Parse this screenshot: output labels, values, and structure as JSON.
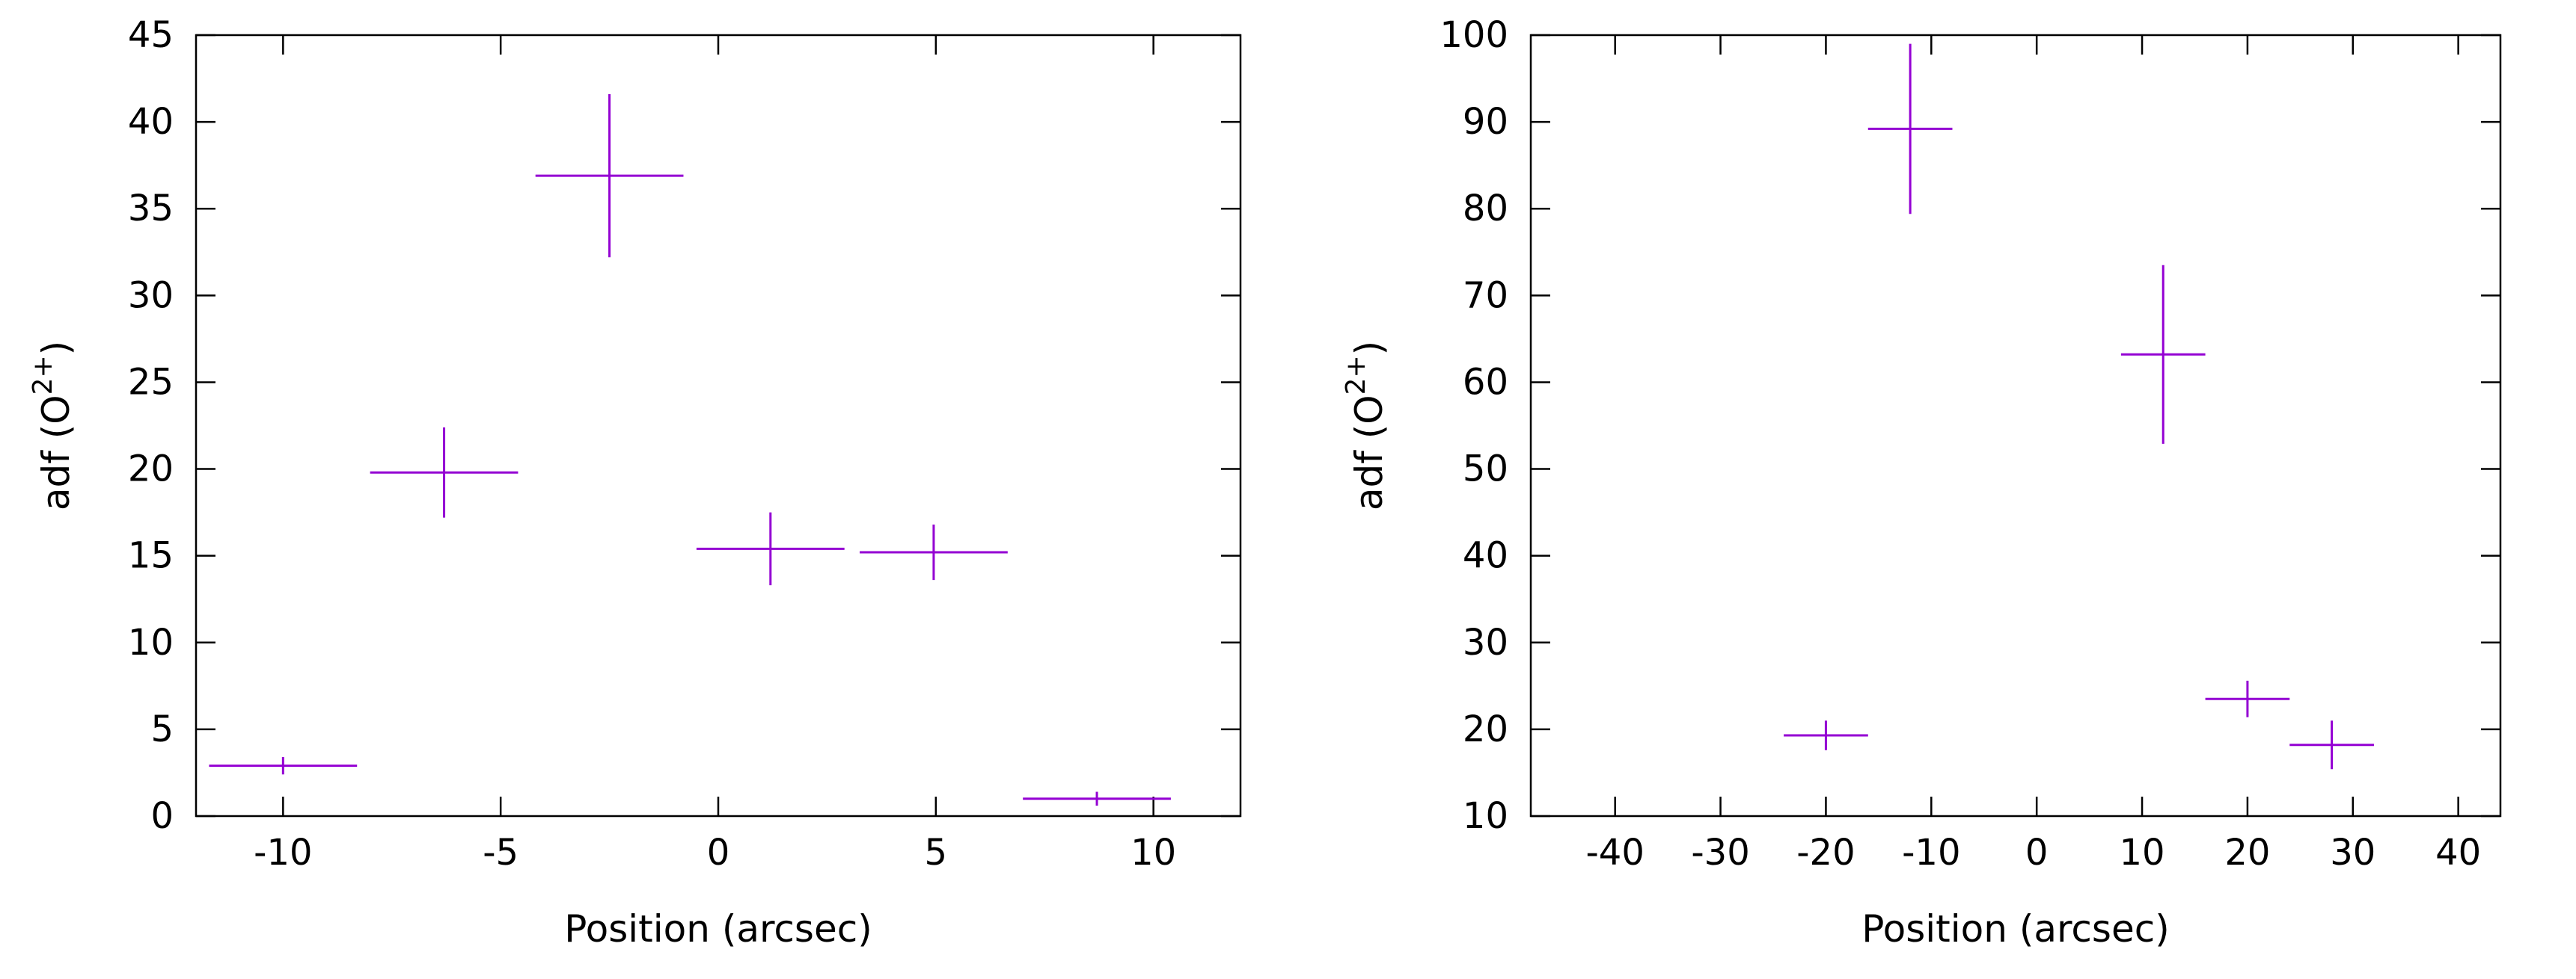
{
  "colors": {
    "series": "#9400d3",
    "axis": "#000000",
    "background": "#ffffff"
  },
  "chart_data": [
    {
      "type": "scatter",
      "title": "",
      "xlabel": "Position (arcsec)",
      "ylabel": {
        "base": "adf (O",
        "sup": "2+",
        "close": ")"
      },
      "xlim": [
        -12,
        12
      ],
      "ylim": [
        0,
        45
      ],
      "xticks": [
        -10,
        -5,
        0,
        5,
        10
      ],
      "yticks": [
        0,
        5,
        10,
        15,
        20,
        25,
        30,
        35,
        40,
        45
      ],
      "grid": false,
      "legend": "none",
      "points": [
        {
          "x": -10,
          "y": 2.9,
          "xerr": 1.7,
          "yerr": 0.5
        },
        {
          "x": -6.3,
          "y": 19.8,
          "xerr": 1.7,
          "yerr": 2.6
        },
        {
          "x": -2.5,
          "y": 36.9,
          "xerr": 1.7,
          "yerr": 4.7
        },
        {
          "x": 1.2,
          "y": 15.4,
          "xerr": 1.7,
          "yerr": 2.1
        },
        {
          "x": 4.95,
          "y": 15.2,
          "xerr": 1.7,
          "yerr": 1.6
        },
        {
          "x": 8.7,
          "y": 1.0,
          "xerr": 1.7,
          "yerr": 0.4
        }
      ]
    },
    {
      "type": "scatter",
      "title": "",
      "xlabel": "Position (arcsec)",
      "ylabel": {
        "base": "adf (O",
        "sup": "2+",
        "close": ")"
      },
      "xlim": [
        -48,
        44
      ],
      "ylim": [
        10,
        100
      ],
      "xticks": [
        -40,
        -30,
        -20,
        -10,
        0,
        10,
        20,
        30,
        40
      ],
      "yticks": [
        10,
        20,
        30,
        40,
        50,
        60,
        70,
        80,
        90,
        100
      ],
      "grid": false,
      "legend": "none",
      "points": [
        {
          "x": -20,
          "y": 19.3,
          "xerr": 4,
          "yerr": 1.7
        },
        {
          "x": -12,
          "y": 89.2,
          "xerr": 4,
          "yerr": 9.8
        },
        {
          "x": 12,
          "y": 63.2,
          "xerr": 4,
          "yerr": 10.3
        },
        {
          "x": 20,
          "y": 23.5,
          "xerr": 4,
          "yerr": 2.1
        },
        {
          "x": 28,
          "y": 18.2,
          "xerr": 4,
          "yerr": 2.8
        }
      ]
    }
  ]
}
